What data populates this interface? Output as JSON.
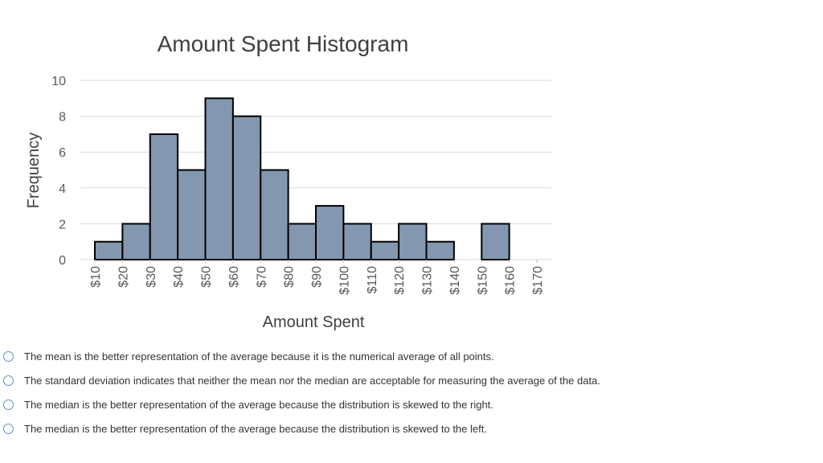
{
  "chart_data": {
    "type": "bar",
    "title": "Amount Spent Histogram",
    "xlabel": "Amount Spent",
    "ylabel": "Frequency",
    "ylim": [
      0,
      10
    ],
    "yticks": [
      "0",
      "2",
      "4",
      "6",
      "8",
      "10"
    ],
    "x_tick_labels": [
      "$10",
      "$20",
      "$30",
      "$40",
      "$50",
      "$60",
      "$70",
      "$80",
      "$90",
      "$100",
      "$110",
      "$120",
      "$130",
      "$140",
      "$150",
      "$160",
      "$170"
    ],
    "bins": [
      {
        "from": 10,
        "to": 20,
        "value": 1
      },
      {
        "from": 20,
        "to": 30,
        "value": 2
      },
      {
        "from": 30,
        "to": 40,
        "value": 7
      },
      {
        "from": 40,
        "to": 50,
        "value": 5
      },
      {
        "from": 50,
        "to": 60,
        "value": 9
      },
      {
        "from": 60,
        "to": 70,
        "value": 8
      },
      {
        "from": 70,
        "to": 80,
        "value": 5
      },
      {
        "from": 80,
        "to": 90,
        "value": 2
      },
      {
        "from": 90,
        "to": 100,
        "value": 3
      },
      {
        "from": 100,
        "to": 110,
        "value": 2
      },
      {
        "from": 110,
        "to": 120,
        "value": 1
      },
      {
        "from": 120,
        "to": 130,
        "value": 2
      },
      {
        "from": 130,
        "to": 140,
        "value": 1
      },
      {
        "from": 140,
        "to": 150,
        "value": 0
      },
      {
        "from": 150,
        "to": 160,
        "value": 2
      }
    ],
    "grid": true,
    "bar_color": "#8497b0"
  },
  "options": [
    {
      "label": "The mean is the better representation of the average because it is the numerical average of all points."
    },
    {
      "label": "The standard deviation indicates that neither the mean nor the median are acceptable for measuring the average of the data."
    },
    {
      "label": "The median is the better representation of the average because the distribution is skewed to the right."
    },
    {
      "label": "The median is the better representation of the average because the distribution is skewed to the left."
    }
  ]
}
